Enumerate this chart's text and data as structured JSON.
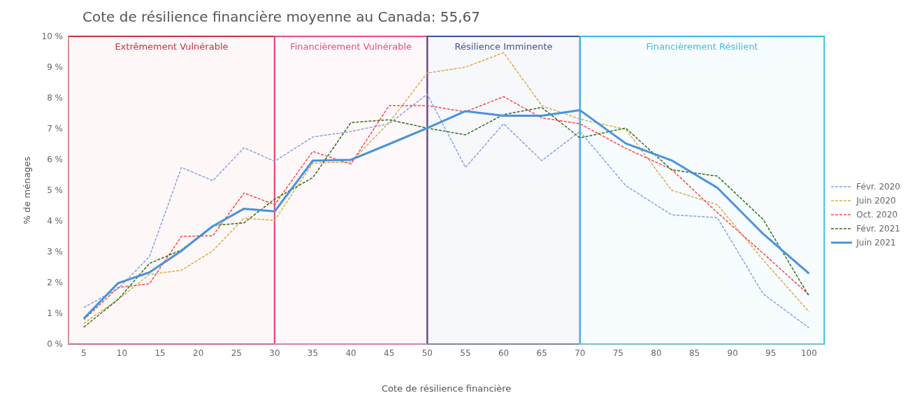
{
  "chart_data": {
    "type": "line",
    "title": "Cote de résilience financière moyenne au Canada: 55,67",
    "xlabel": "Cote de résilience financière",
    "ylabel": "% de ménages",
    "x": [
      5,
      9.5,
      13.6,
      17.8,
      21.9,
      26,
      30,
      35,
      40,
      45,
      50,
      55,
      60,
      65,
      70,
      76,
      82,
      88,
      94,
      100
    ],
    "xlim": [
      3,
      102
    ],
    "xticks": [
      5,
      10,
      15,
      20,
      25,
      30,
      35,
      40,
      45,
      50,
      55,
      60,
      65,
      70,
      75,
      80,
      85,
      90,
      95,
      100
    ],
    "ylim": [
      0,
      10
    ],
    "yticks": [
      {
        "value": 0,
        "label": "0 %"
      },
      {
        "value": 1,
        "label": "1 %"
      },
      {
        "value": 2,
        "label": "2 %"
      },
      {
        "value": 3,
        "label": "3 %"
      },
      {
        "value": 4,
        "label": "4 %"
      },
      {
        "value": 5,
        "label": "5 %"
      },
      {
        "value": 6,
        "label": "6 %"
      },
      {
        "value": 7,
        "label": "7 %"
      },
      {
        "value": 8,
        "label": "8 %"
      },
      {
        "value": 9,
        "label": "9 %"
      },
      {
        "value": 10,
        "label": "10 %"
      }
    ],
    "grid": false,
    "legend": "right",
    "marker": "none",
    "bands": [
      {
        "axis": "x",
        "from": 3,
        "to": 30,
        "label": "Extrêmement Vulnérable",
        "color": "#c4323f"
      },
      {
        "axis": "x",
        "from": 30,
        "to": 50,
        "label": "Financièrement Vulnérable",
        "color": "#ea4a7e"
      },
      {
        "axis": "x",
        "from": 50,
        "to": 70,
        "label": "Résilience Imminente",
        "color": "#3f4f95"
      },
      {
        "axis": "x",
        "from": 70,
        "to": 102,
        "label": "Financièrement Résilient",
        "color": "#3cbde0"
      }
    ],
    "series": [
      {
        "name": "Févr. 2020",
        "color": "#83a3e0",
        "line_style": "dashed",
        "values": [
          1.19,
          1.8,
          2.84,
          5.74,
          5.31,
          6.38,
          5.94,
          6.73,
          6.91,
          7.16,
          8.12,
          5.74,
          7.16,
          5.96,
          6.91,
          5.15,
          4.2,
          4.11,
          1.63,
          0.53
        ]
      },
      {
        "name": "Juin 2020",
        "color": "#d9ab45",
        "line_style": "dashed",
        "values": [
          0.67,
          1.45,
          2.26,
          2.4,
          3.03,
          4.09,
          4.02,
          5.88,
          5.92,
          7.2,
          8.81,
          9.0,
          9.47,
          7.75,
          7.31,
          6.98,
          5.0,
          4.53,
          2.73,
          1.05
        ]
      },
      {
        "name": "Oct. 2020",
        "color": "#ff4545",
        "line_style": "dashed",
        "values": [
          0.79,
          1.84,
          1.96,
          3.5,
          3.52,
          4.91,
          4.53,
          6.26,
          5.85,
          7.75,
          7.75,
          7.55,
          8.04,
          7.35,
          7.16,
          6.36,
          5.68,
          4.27,
          2.95,
          1.6
        ]
      },
      {
        "name": "Févr. 2021",
        "color": "#2f6e14",
        "line_style": "dashed",
        "values": [
          0.55,
          1.45,
          2.62,
          3.06,
          3.85,
          3.94,
          4.71,
          5.41,
          7.2,
          7.29,
          7.02,
          6.8,
          7.46,
          7.69,
          6.7,
          7.02,
          5.66,
          5.46,
          4.05,
          1.56
        ]
      },
      {
        "name": "Juin 2021",
        "color": "#4a92dc",
        "line_style": "solid",
        "values": [
          0.83,
          1.98,
          2.33,
          3.03,
          3.83,
          4.4,
          4.31,
          5.96,
          5.99,
          6.5,
          7.02,
          7.57,
          7.42,
          7.42,
          7.6,
          6.52,
          5.97,
          5.08,
          3.58,
          2.29
        ]
      }
    ]
  }
}
